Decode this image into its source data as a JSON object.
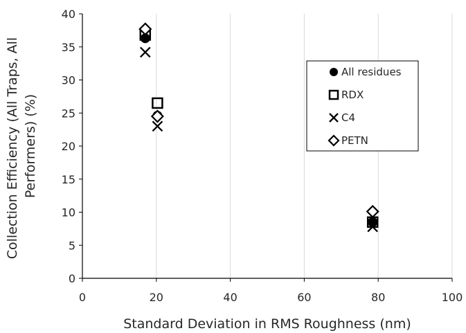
{
  "chart_data": {
    "type": "scatter",
    "xlabel": "Standard Deviation in RMS Roughness (nm)",
    "ylabel_lines": [
      "Collection Efficiency (All Traps, All",
      "Performers) (%)"
    ],
    "xlim": [
      0,
      100
    ],
    "ylim": [
      0,
      40
    ],
    "x_ticks": [
      0,
      20,
      40,
      60,
      80,
      100
    ],
    "y_ticks": [
      0,
      5,
      10,
      15,
      20,
      25,
      30,
      35,
      40
    ],
    "grid": "vertical",
    "legend_position": "right",
    "series": [
      {
        "name": "All residues",
        "marker": "filled-circle",
        "points": [
          [
            17,
            36.3
          ],
          [
            20.3,
            24.6
          ],
          [
            78.5,
            8.5
          ]
        ]
      },
      {
        "name": "RDX",
        "marker": "open-square",
        "points": [
          [
            17,
            36.8
          ],
          [
            20.3,
            26.5
          ],
          [
            78.5,
            8.5
          ]
        ]
      },
      {
        "name": "C4",
        "marker": "x",
        "points": [
          [
            17,
            34.2
          ],
          [
            20.3,
            23.0
          ],
          [
            78.5,
            7.8
          ]
        ]
      },
      {
        "name": "PETN",
        "marker": "open-diamond",
        "points": [
          [
            17,
            37.7
          ],
          [
            20.3,
            24.5
          ],
          [
            78.5,
            10.1
          ]
        ]
      }
    ]
  }
}
